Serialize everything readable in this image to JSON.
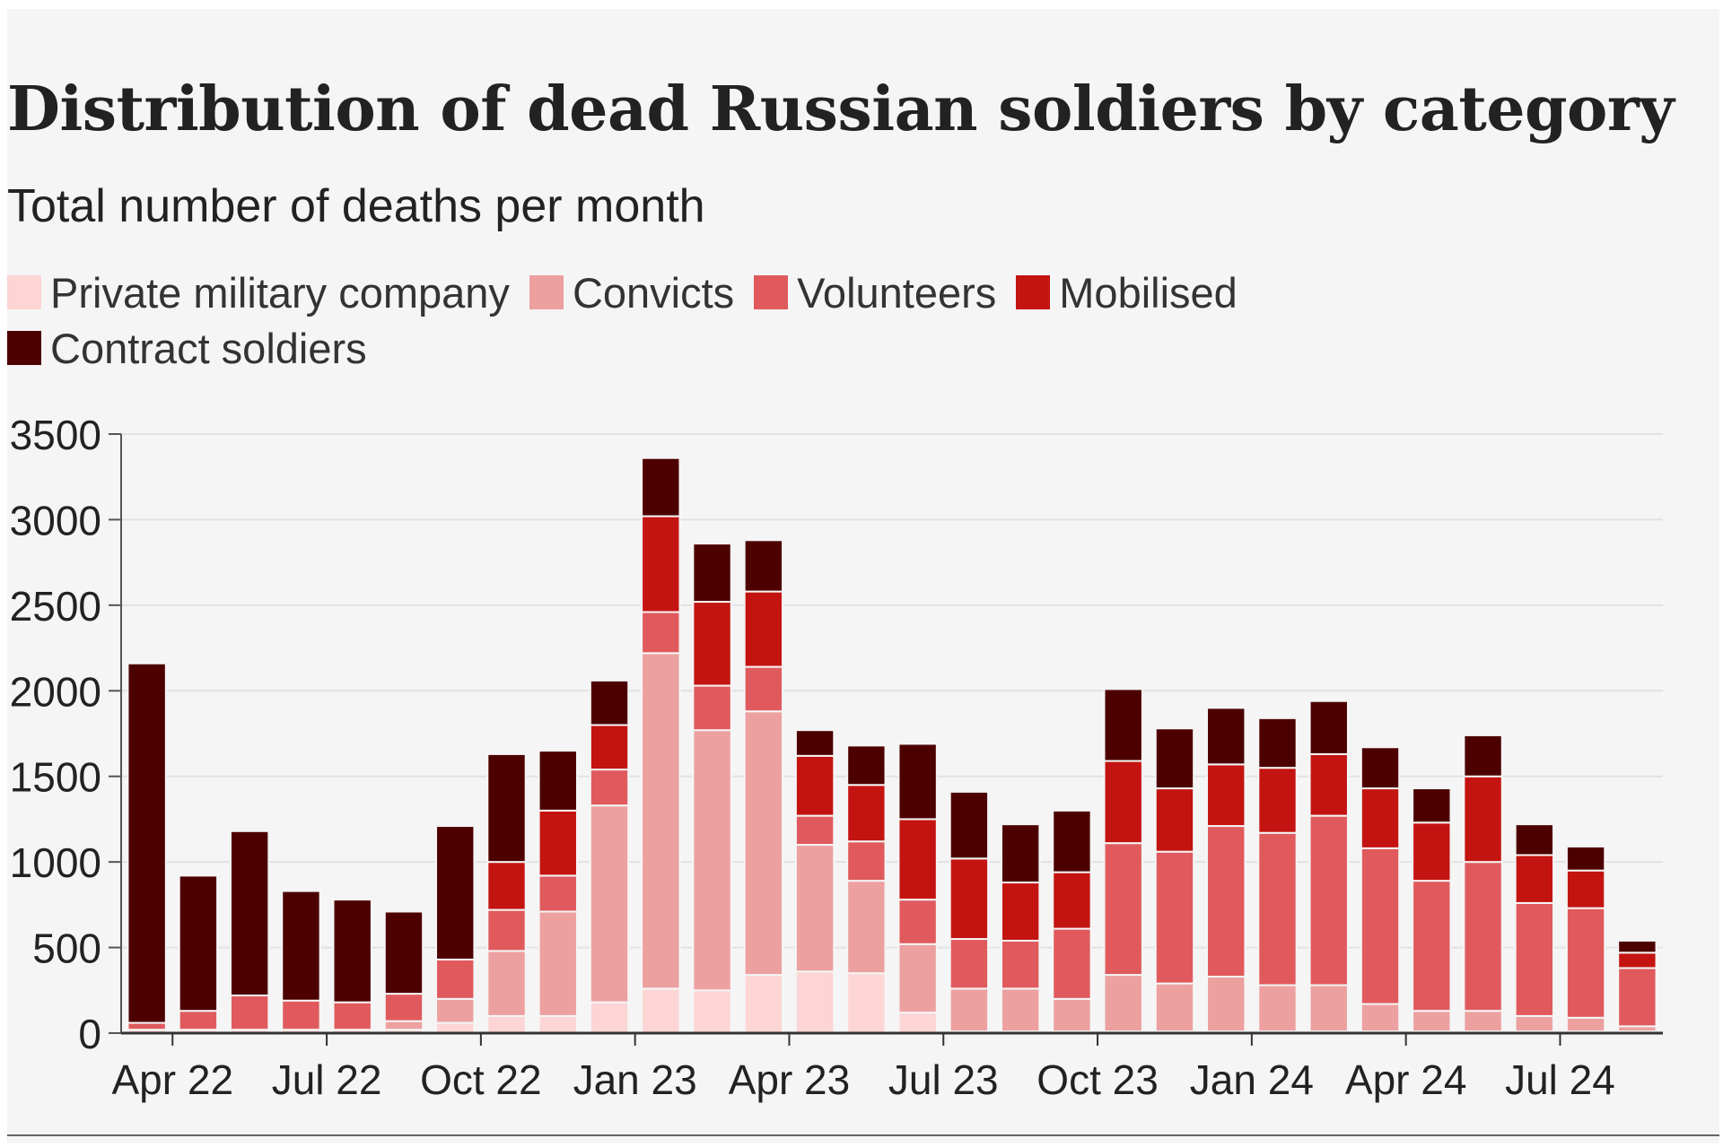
{
  "title": "Distribution of dead Russian soldiers by category",
  "subtitle": "Total number of deaths per month",
  "legend": [
    {
      "label": "Private military company",
      "color": "#fcd5d4"
    },
    {
      "label": "Convicts",
      "color": "#eda0a0"
    },
    {
      "label": "Volunteers",
      "color": "#e05a5d"
    },
    {
      "label": "Mobilised",
      "color": "#c41411"
    },
    {
      "label": "Contract soldiers",
      "color": "#4d0000"
    }
  ],
  "chart_data": {
    "type": "bar",
    "stacked": true,
    "title": "Distribution of dead Russian soldiers by category",
    "subtitle": "Total number of deaths per month",
    "ylim": [
      0,
      3500
    ],
    "yticks": [
      0,
      500,
      1000,
      1500,
      2000,
      2500,
      3000,
      3500
    ],
    "ytick_labels": [
      "0",
      "500",
      "1000",
      "1500",
      "2000",
      "2500",
      "3000",
      "3500"
    ],
    "grid": true,
    "legend_position": "top",
    "categories": [
      "Mar 22",
      "Apr 22",
      "May 22",
      "Jun 22",
      "Jul 22",
      "Aug 22",
      "Sep 22",
      "Oct 22",
      "Nov 22",
      "Dec 22",
      "Jan 23",
      "Feb 23",
      "Mar 23",
      "Apr 23",
      "May 23",
      "Jun 23",
      "Jul 23",
      "Aug 23",
      "Sep 23",
      "Oct 23",
      "Nov 23",
      "Dec 23",
      "Jan 24",
      "Feb 24",
      "Mar 24",
      "Apr 24",
      "May 24",
      "Jun 24",
      "Jul 24",
      "Aug 24"
    ],
    "xtick_labels": [
      {
        "label": "Apr 22",
        "category": "Apr 22"
      },
      {
        "label": "Jul 22",
        "category": "Jul 22"
      },
      {
        "label": "Oct 22",
        "category": "Oct 22"
      },
      {
        "label": "Jan 23",
        "category": "Jan 23"
      },
      {
        "label": "Apr 23",
        "category": "Apr 23"
      },
      {
        "label": "Jul 23",
        "category": "Jul 23"
      },
      {
        "label": "Oct 23",
        "category": "Oct 23"
      },
      {
        "label": "Jan 24",
        "category": "Jan 24"
      },
      {
        "label": "Apr 24",
        "category": "Apr 24"
      },
      {
        "label": "Jul 24",
        "category": "Jul 24"
      }
    ],
    "series": [
      {
        "name": "Private military company",
        "color": "#fcd5d4",
        "values": [
          20,
          20,
          20,
          20,
          20,
          20,
          60,
          100,
          100,
          180,
          260,
          250,
          340,
          360,
          350,
          120,
          10,
          10,
          10,
          10,
          10,
          10,
          10,
          10,
          10,
          10,
          10,
          10,
          10,
          10
        ]
      },
      {
        "name": "Convicts",
        "color": "#eda0a0",
        "values": [
          0,
          0,
          0,
          0,
          0,
          50,
          140,
          380,
          610,
          1150,
          1960,
          1520,
          1540,
          740,
          540,
          400,
          250,
          250,
          190,
          330,
          280,
          320,
          270,
          270,
          160,
          120,
          120,
          90,
          80,
          30
        ]
      },
      {
        "name": "Volunteers",
        "color": "#e05a5d",
        "values": [
          40,
          110,
          200,
          170,
          160,
          160,
          230,
          240,
          210,
          210,
          240,
          260,
          260,
          170,
          230,
          260,
          290,
          280,
          410,
          770,
          770,
          880,
          890,
          990,
          910,
          760,
          870,
          660,
          640,
          340
        ]
      },
      {
        "name": "Mobilised",
        "color": "#c41411",
        "values": [
          0,
          0,
          0,
          0,
          0,
          0,
          0,
          280,
          380,
          260,
          560,
          490,
          440,
          350,
          330,
          470,
          470,
          340,
          330,
          480,
          370,
          360,
          380,
          360,
          350,
          340,
          500,
          280,
          220,
          90
        ]
      },
      {
        "name": "Contract soldiers",
        "color": "#4d0000",
        "values": [
          2100,
          790,
          960,
          640,
          600,
          480,
          780,
          630,
          350,
          260,
          340,
          340,
          300,
          150,
          230,
          440,
          390,
          340,
          360,
          420,
          350,
          330,
          290,
          310,
          240,
          200,
          240,
          180,
          140,
          70
        ]
      }
    ]
  }
}
